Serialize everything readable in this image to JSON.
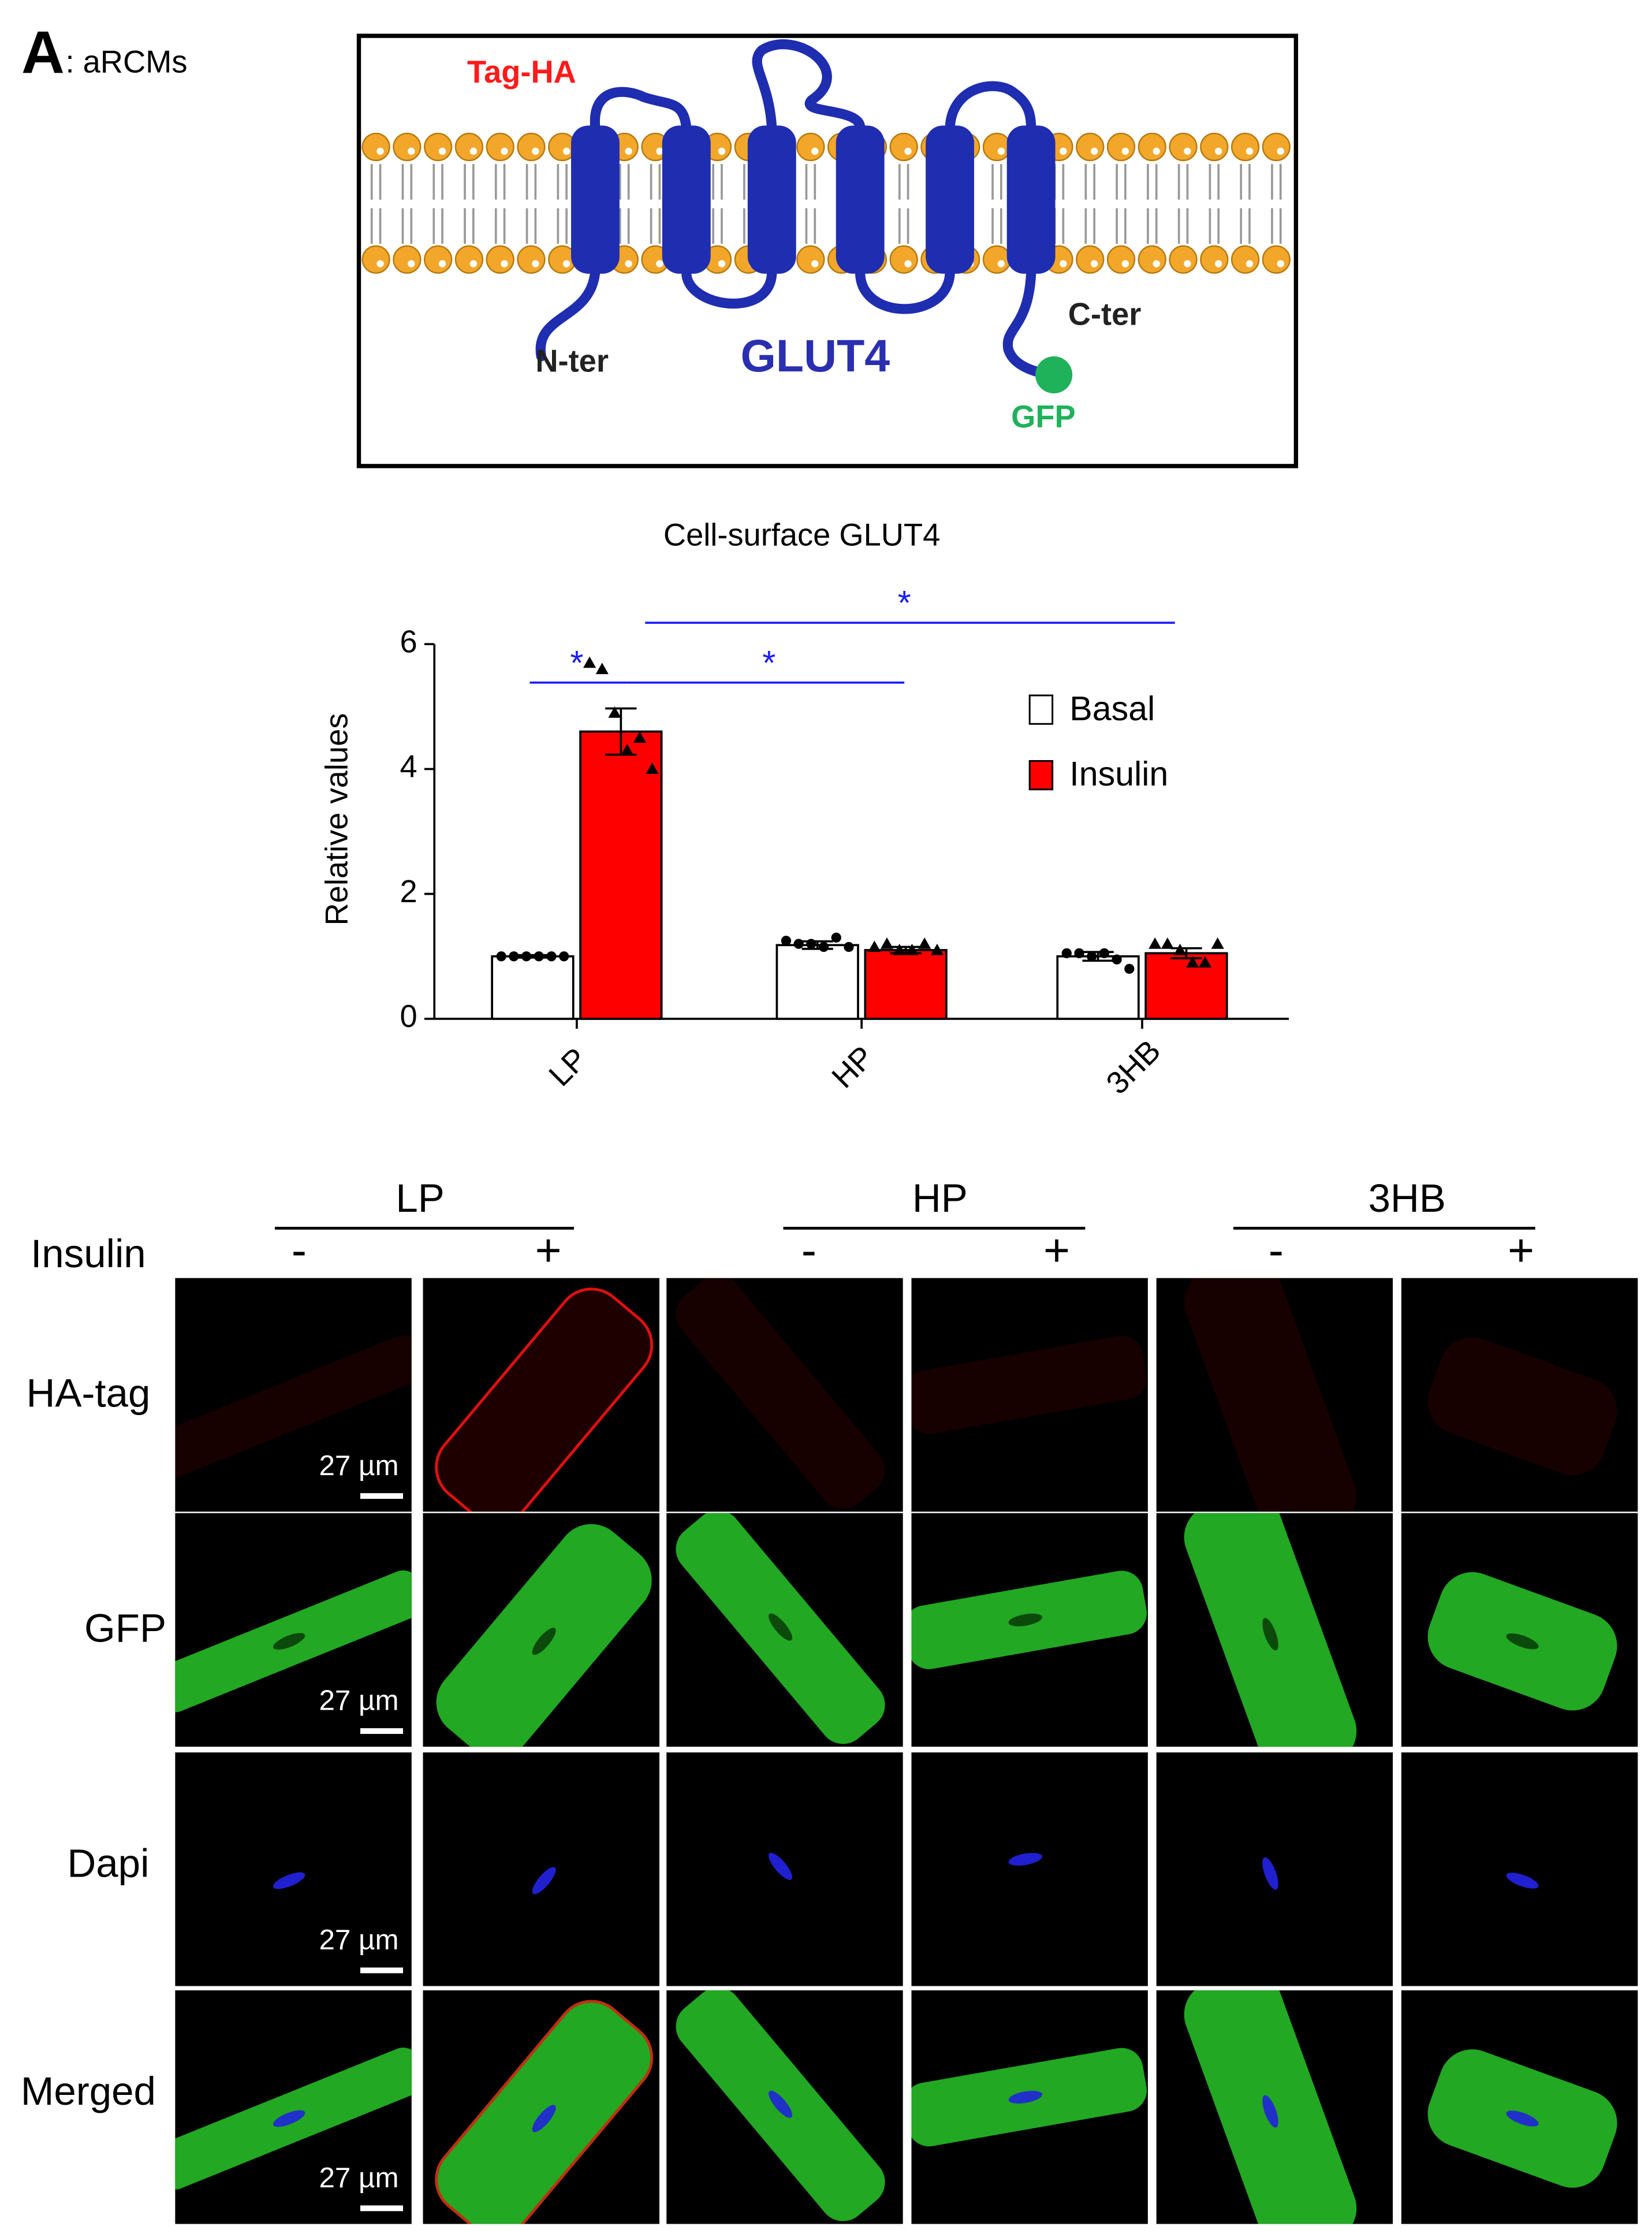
{
  "panel": {
    "letter": "A",
    "label": ": aRCMs"
  },
  "diagram": {
    "tag": "Tag-HA",
    "n_terminus": "N-ter",
    "protein": "GLUT4",
    "c_terminus": "C-ter",
    "reporter": "GFP"
  },
  "chart_data": {
    "type": "bar",
    "title": "Cell-surface GLUT4",
    "y_label": "Relative values",
    "categories": [
      "LP",
      "HP",
      "3HB"
    ],
    "series": [
      {
        "name": "Basal",
        "color": "#ffffff",
        "values": [
          1.0,
          1.18,
          1.0
        ],
        "errors": [
          0.02,
          0.06,
          0.07
        ],
        "points": [
          [
            1.0,
            1.0,
            1.0,
            1.0,
            1.0,
            1.0
          ],
          [
            1.25,
            1.2,
            1.2,
            1.15,
            1.3,
            1.15
          ],
          [
            1.05,
            1.05,
            1.0,
            1.05,
            0.95,
            0.8
          ]
        ]
      },
      {
        "name": "Insulin",
        "color": "#ff0000",
        "values": [
          4.6,
          1.1,
          1.05
        ],
        "errors": [
          0.37,
          0.05,
          0.08
        ],
        "points": [
          [
            5.7,
            5.6,
            4.9,
            4.3,
            4.5,
            4.0
          ],
          [
            1.15,
            1.2,
            1.1,
            1.1,
            1.2,
            1.1
          ],
          [
            1.2,
            1.2,
            1.1,
            0.9,
            0.9,
            1.2
          ]
        ]
      }
    ],
    "ylim": [
      0,
      6
    ],
    "yticks": [
      0,
      2,
      4,
      6
    ],
    "annotations": [
      "*",
      "*",
      "*"
    ],
    "annotation_color": "#1a1aff",
    "legend": "upper right"
  },
  "micrographs": {
    "groups": [
      "LP",
      "HP",
      "3HB"
    ],
    "row_header": "Insulin",
    "signs": [
      "-",
      "+"
    ],
    "rows": [
      "HA-tag",
      "GFP",
      "Dapi",
      "Merged"
    ],
    "scale_bar": "27 µm"
  }
}
